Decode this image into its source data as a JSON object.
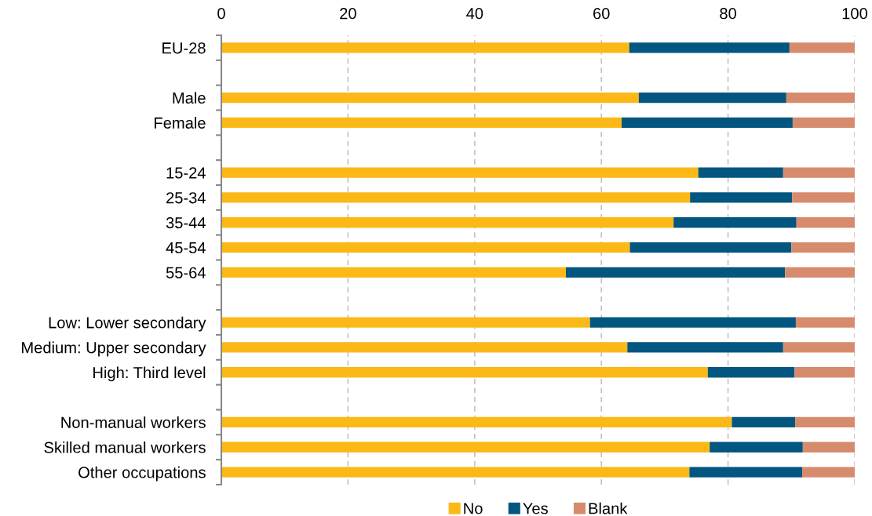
{
  "chart_data": {
    "type": "bar",
    "orientation": "horizontal",
    "stacked": true,
    "categories": [
      "EU-28",
      null,
      "Male",
      "Female",
      null,
      "15-24",
      "25-34",
      "35-44",
      "45-54",
      "55-64",
      null,
      "Low: Lower secondary",
      "Medium: Upper secondary",
      "High: Third level",
      null,
      "Non-manual workers",
      "Skilled manual workers",
      "Other occupations"
    ],
    "series": [
      {
        "name": "No",
        "color": "#fbb817",
        "values": [
          64.4,
          null,
          65.9,
          63.2,
          null,
          75.3,
          74.0,
          71.4,
          64.5,
          54.4,
          null,
          58.2,
          64.1,
          76.8,
          null,
          80.6,
          77.1,
          73.9
        ]
      },
      {
        "name": "Yes",
        "color": "#03567f",
        "values": [
          25.3,
          null,
          23.3,
          27.0,
          null,
          13.4,
          16.1,
          19.4,
          25.5,
          34.6,
          null,
          32.5,
          24.6,
          13.7,
          null,
          10.0,
          14.7,
          17.8
        ]
      },
      {
        "name": "Blank",
        "color": "#d78b6d",
        "values": [
          10.3,
          null,
          10.8,
          9.8,
          null,
          11.3,
          9.9,
          9.2,
          10.0,
          11.0,
          null,
          9.3,
          11.3,
          9.5,
          null,
          9.4,
          8.2,
          8.3
        ]
      }
    ],
    "xlim": [
      0,
      100
    ],
    "xticks": [
      0,
      20,
      40,
      60,
      80,
      100
    ],
    "grid": "x",
    "legend": "bottom"
  }
}
